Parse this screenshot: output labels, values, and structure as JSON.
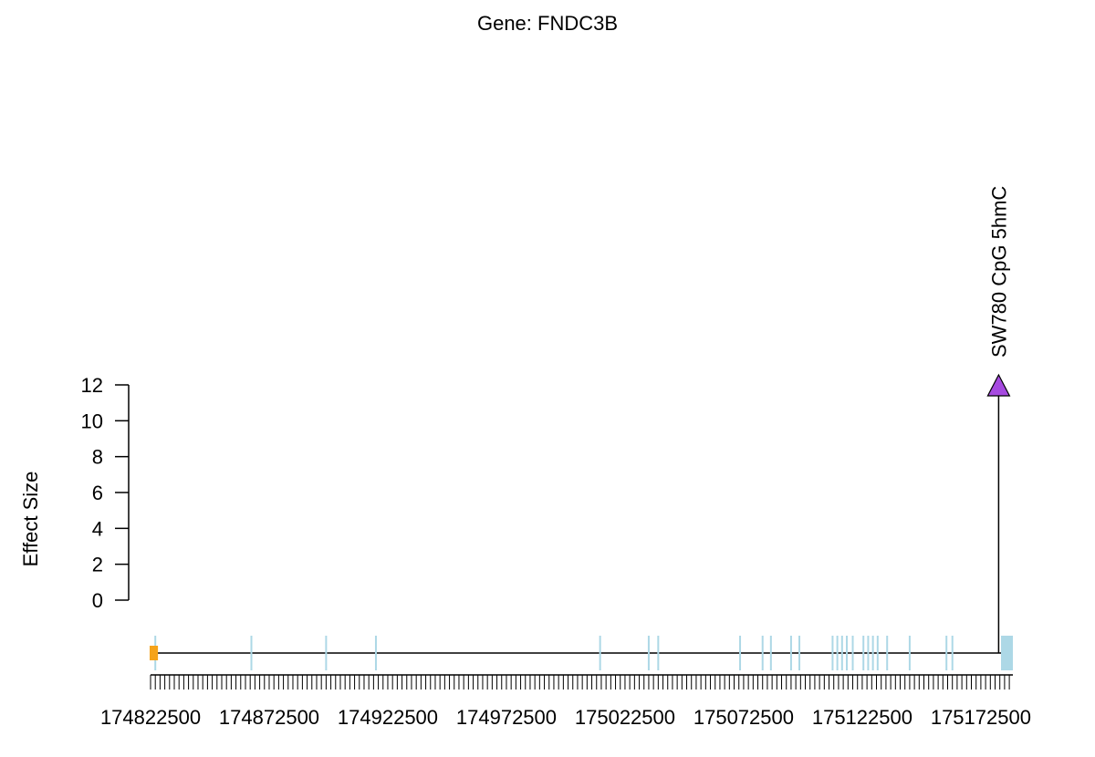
{
  "chart_data": {
    "type": "lollipop",
    "title": "Gene: FNDC3B",
    "ylabel": "Effect Size",
    "xlabel": "",
    "y_ticks": [
      0,
      2,
      4,
      6,
      8,
      10,
      12
    ],
    "ylim": [
      0,
      12
    ],
    "x_tick_labels": [
      "174822500",
      "174872500",
      "174922500",
      "174972500",
      "175022500",
      "175072500",
      "175122500",
      "175172500"
    ],
    "x_ticks": [
      174822500,
      174872500,
      174922500,
      174972500,
      175022500,
      175072500,
      175122500,
      175172500
    ],
    "xlim": [
      174822500,
      175186000
    ],
    "minor_tick_step": 2000,
    "points": [
      {
        "label": "SW780 CpG 5hmC",
        "x": 175180000,
        "y": 12,
        "color": "#A64AE0",
        "marker": "triangle"
      }
    ],
    "gene_track": {
      "start": 174822500,
      "end": 175186000,
      "line_color": "#000000",
      "utr5": {
        "start": 174822500,
        "end": 174826000,
        "color": "#F5A31A"
      },
      "utr3": {
        "start": 175181000,
        "end": 175186000,
        "color": "#ADD8E6"
      },
      "exon_color": "#ADD8E6",
      "exons": [
        174824500,
        174865000,
        174896500,
        174917500,
        175012000,
        175032500,
        175036500,
        175071000,
        175080500,
        175084000,
        175092500,
        175096000,
        175110000,
        175112000,
        175114000,
        175116000,
        175118500,
        175123000,
        175125000,
        175127000,
        175129000,
        175133000,
        175142500,
        175158000,
        175160500
      ]
    }
  }
}
